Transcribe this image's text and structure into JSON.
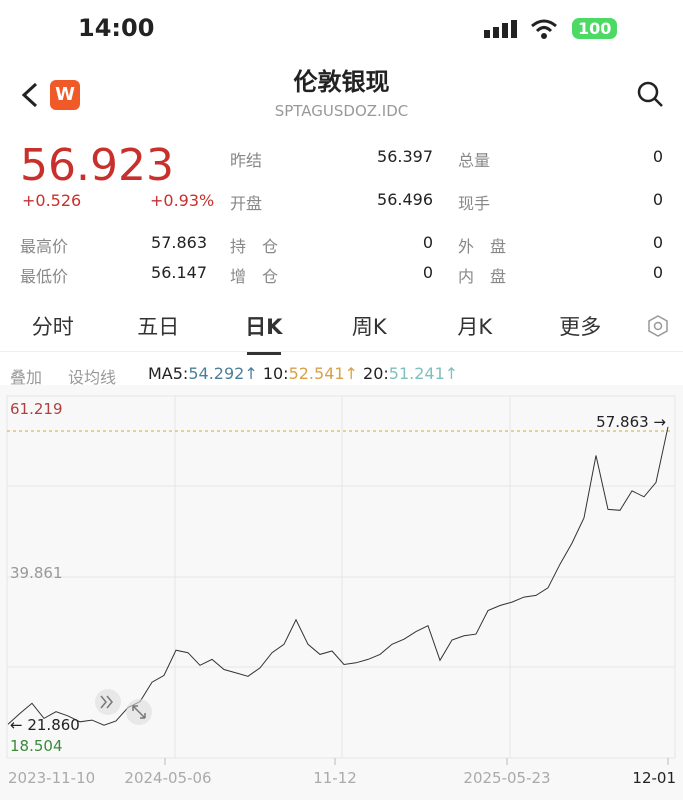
{
  "status": {
    "time": "14:00",
    "battery": "100"
  },
  "header": {
    "title": "伦敦银现",
    "subtitle": "SPTAGUSDOZ.IDC",
    "logo": "W",
    "back_icon": "chevron-left",
    "search_icon": "search"
  },
  "quote": {
    "price": "56.923",
    "change": "+0.526",
    "change_pct": "+0.93%",
    "fields": [
      {
        "label": "昨结",
        "value": "56.397"
      },
      {
        "label": "总量",
        "value": "0"
      },
      {
        "label": "开盘",
        "value": "56.496"
      },
      {
        "label": "现手",
        "value": "0"
      },
      {
        "label": "最高价",
        "value": "57.863"
      },
      {
        "label": "持　仓",
        "value": "0"
      },
      {
        "label": "外　盘",
        "value": "0"
      },
      {
        "label": "最低价",
        "value": "56.147"
      },
      {
        "label": "增　仓",
        "value": "0"
      },
      {
        "label": "内　盘",
        "value": "0"
      }
    ]
  },
  "tabs": [
    "分时",
    "五日",
    "日K",
    "周K",
    "月K",
    "更多"
  ],
  "active_tab": "日K",
  "chart_tools": {
    "overlay": "叠加",
    "set_ma": "设均线",
    "ma5_label": "MA5:",
    "ma5": "54.292↑",
    "ma10_label": "10:",
    "ma10": "52.541↑",
    "ma20_label": "20:",
    "ma20": "51.241↑"
  },
  "colors": {
    "up": "#c8302c",
    "ma5": "#4a7f9c",
    "ma10": "#d9a04a",
    "ma20": "#7fbfbf",
    "low": "#3a8a3a"
  },
  "chart_data": {
    "type": "line",
    "ylim": [
      18.504,
      61.219
    ],
    "y_top_label": "61.219",
    "y_mid_label": "39.861",
    "y_bottom_label": "18.504",
    "max_marker": "57.863 →",
    "min_marker": "← 21.860",
    "x_ticks": [
      "2023-11-10",
      "2024-05-06",
      "11-12",
      "2025-05-23",
      "12-01"
    ],
    "values": [
      22.5,
      23.8,
      25.0,
      23.2,
      24.0,
      23.5,
      22.8,
      23.0,
      22.4,
      22.9,
      24.5,
      25.2,
      27.5,
      28.3,
      31.3,
      31.0,
      29.5,
      30.2,
      29.0,
      28.6,
      28.2,
      29.2,
      31.0,
      32.0,
      34.9,
      32.0,
      30.8,
      31.2,
      29.6,
      29.8,
      30.2,
      30.8,
      32.0,
      32.6,
      33.5,
      34.2,
      30.1,
      32.5,
      33.0,
      33.2,
      36.0,
      36.6,
      37.0,
      37.6,
      37.8,
      38.7,
      41.5,
      44.0,
      47.0,
      54.4,
      48.0,
      47.9,
      50.2,
      49.5,
      51.2,
      57.8
    ]
  }
}
